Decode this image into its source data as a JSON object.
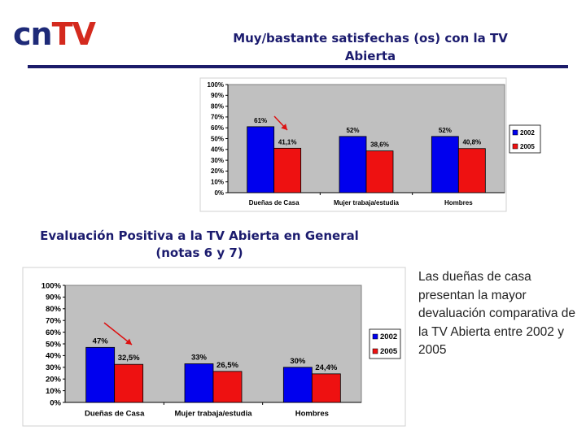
{
  "logo": {
    "part1": "cn",
    "part2": "TV"
  },
  "slide": {
    "title1": "Muy/bastante satisfechas (os) con la TV Abierta",
    "title2": "Evaluación Positiva a la TV Abierta en General (notas 6 y 7)",
    "side_text": "Las dueñas de casa presentan la mayor devaluación comparativa de la TV Abierta entre 2002 y 2005"
  },
  "colors": {
    "series_2002": "#0000ee",
    "series_2005": "#ee1111",
    "plot_bg": "#c0c0c0",
    "arrow": "#dd1111",
    "title": "#1b1b6e"
  },
  "chart_data": [
    {
      "type": "bar",
      "title": "Muy/bastante satisfechas (os) con la TV Abierta",
      "categories": [
        "Dueñas de Casa",
        "Mujer trabaja/estudia",
        "Hombres"
      ],
      "series": [
        {
          "name": "2002",
          "values": [
            61,
            52,
            52
          ],
          "labels": [
            "61%",
            "52%",
            "52%"
          ]
        },
        {
          "name": "2005",
          "values": [
            41.1,
            38.6,
            40.8
          ],
          "labels": [
            "41,1%",
            "38,6%",
            "40,8%"
          ]
        }
      ],
      "ylim": [
        0,
        100
      ],
      "yticks": [
        "0%",
        "10%",
        "20%",
        "30%",
        "40%",
        "50%",
        "60%",
        "70%",
        "80%",
        "90%",
        "100%"
      ],
      "grid": false,
      "legend": "right",
      "annotation": "red arrow pointing from 2002 to 2005 bar of Dueñas de Casa"
    },
    {
      "type": "bar",
      "title": "Evaluación Positiva a la TV Abierta en General (notas 6 y 7)",
      "categories": [
        "Dueñas de Casa",
        "Mujer trabaja/estudia",
        "Hombres"
      ],
      "series": [
        {
          "name": "2002",
          "values": [
            47,
            33,
            30
          ],
          "labels": [
            "47%",
            "33%",
            "30%"
          ]
        },
        {
          "name": "2005",
          "values": [
            32.5,
            26.5,
            24.4
          ],
          "labels": [
            "32,5%",
            "26,5%",
            "24,4%"
          ]
        }
      ],
      "ylim": [
        0,
        100
      ],
      "yticks": [
        "0%",
        "10%",
        "20%",
        "30%",
        "40%",
        "50%",
        "60%",
        "70%",
        "80%",
        "90%",
        "100%"
      ],
      "grid": false,
      "legend": "right",
      "annotation": "red arrow pointing from 2002 to 2005 bar of Dueñas de Casa"
    }
  ]
}
